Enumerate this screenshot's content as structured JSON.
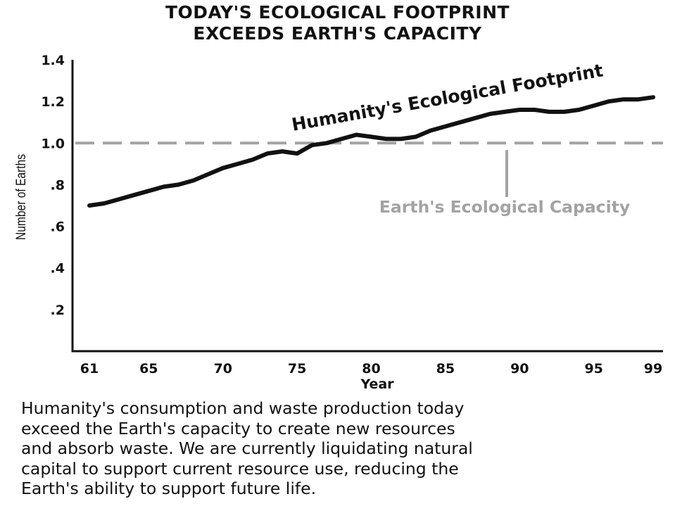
{
  "title_lines": [
    "TODAY'S ECOLOGICAL FOOTPRINT",
    "EXCEEDS EARTH'S CAPACITY"
  ],
  "chart_data": {
    "type": "line",
    "title": "TODAY'S ECOLOGICAL FOOTPRINT EXCEEDS EARTH'S CAPACITY",
    "xlabel": "Year",
    "ylabel": "Number of Earths",
    "xlim": [
      61,
      100
    ],
    "ylim": [
      0,
      1.4
    ],
    "x_ticks": [
      61,
      65,
      70,
      75,
      80,
      85,
      90,
      95,
      99
    ],
    "x_tick_labels": [
      "61",
      "65",
      "70",
      "75",
      "80",
      "85",
      "90",
      "95",
      "99"
    ],
    "y_ticks": [
      0.2,
      0.4,
      0.6,
      0.8,
      1.0,
      1.2,
      1.4
    ],
    "y_tick_labels": [
      ".2",
      ".4",
      ".6",
      ".8",
      "1.0",
      "1.2",
      "1.4"
    ],
    "grid": false,
    "series": [
      {
        "name": "Humanity's Ecological Footprint",
        "color": "#111111",
        "x": [
          61,
          62,
          63,
          64,
          65,
          66,
          67,
          68,
          69,
          70,
          71,
          72,
          73,
          74,
          75,
          76,
          77,
          78,
          79,
          80,
          81,
          82,
          83,
          84,
          85,
          86,
          87,
          88,
          89,
          90,
          91,
          92,
          93,
          94,
          95,
          96,
          97,
          98,
          99
        ],
        "y": [
          0.7,
          0.71,
          0.73,
          0.75,
          0.77,
          0.79,
          0.8,
          0.82,
          0.85,
          0.88,
          0.9,
          0.92,
          0.95,
          0.96,
          0.95,
          0.99,
          1.0,
          1.02,
          1.04,
          1.03,
          1.02,
          1.02,
          1.03,
          1.06,
          1.08,
          1.1,
          1.12,
          1.14,
          1.15,
          1.16,
          1.16,
          1.15,
          1.15,
          1.16,
          1.18,
          1.2,
          1.21,
          1.21,
          1.22
        ]
      },
      {
        "name": "Earth's Ecological Capacity",
        "color": "#a3a3a3",
        "dashed": true,
        "x": [
          61,
          100
        ],
        "y": [
          1.0,
          1.0
        ]
      }
    ],
    "annotations": [
      {
        "text": "Humanity's Ecological Footprint",
        "series": 0
      },
      {
        "text": "Earth's Ecological Capacity",
        "series": 1
      }
    ]
  },
  "caption_lines": [
    "Humanity's consumption and waste production today",
    "exceed the Earth's capacity to create new resources",
    "and absorb waste. We are currently liquidating natural",
    "capital to support current resource use, reducing the",
    "Earth's ability to support future life."
  ]
}
